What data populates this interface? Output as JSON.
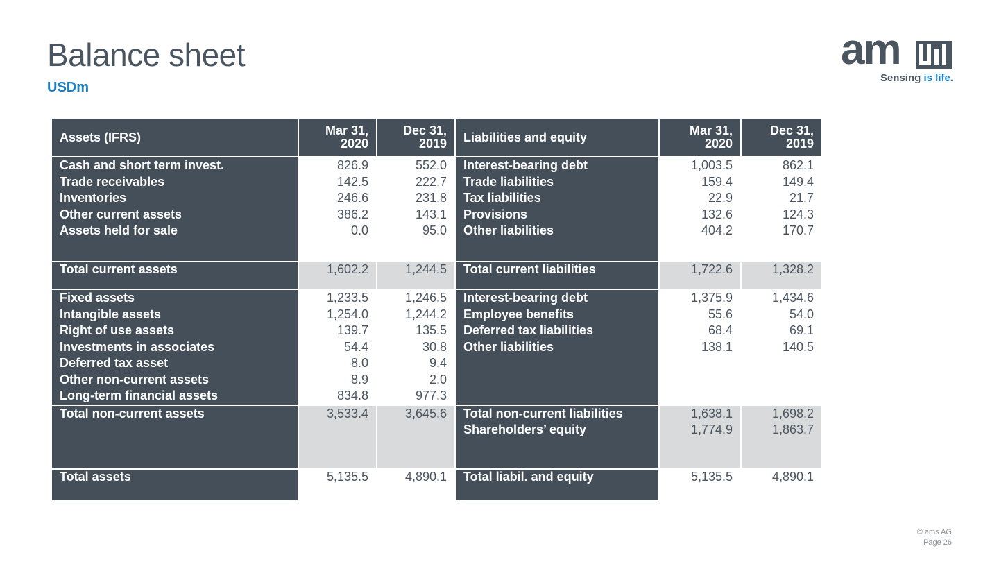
{
  "title": "Balance sheet",
  "subtitle": "USDm",
  "logo": {
    "wordmark": "am",
    "tagline_a": "Sensing ",
    "tagline_b": "is life."
  },
  "footer": {
    "copyright": "© ams AG",
    "page": "Page 26"
  },
  "headers": {
    "assets": "Assets (IFRS)",
    "liabilities": "Liabilities and equity",
    "col1_l1": "Mar 31,",
    "col1_l2": "2020",
    "col2_l1": "Dec 31,",
    "col2_l2": "2019"
  },
  "current_assets": {
    "labels": [
      "Cash and short term invest.",
      "Trade receivables",
      "Inventories",
      "Other current assets",
      "Assets held for sale"
    ],
    "mar2020": [
      "826.9",
      "142.5",
      "246.6",
      "386.2",
      "0.0"
    ],
    "dec2019": [
      "552.0",
      "222.7",
      "231.8",
      "143.1",
      "95.0"
    ]
  },
  "current_liabilities": {
    "labels": [
      "Interest-bearing debt",
      "Trade liabilities",
      "Tax liabilities",
      "Provisions",
      "Other liabilities"
    ],
    "mar2020": [
      "1,003.5",
      "159.4",
      "22.9",
      "132.6",
      "404.2"
    ],
    "dec2019": [
      "862.1",
      "149.4",
      "21.7",
      "124.3",
      "170.7"
    ]
  },
  "total_current": {
    "assets_label": "Total current assets",
    "assets_mar2020": "1,602.2",
    "assets_dec2019": "1,244.5",
    "liab_label": "Total current liabilities",
    "liab_mar2020": "1,722.6",
    "liab_dec2019": "1,328.2"
  },
  "noncurrent_assets": {
    "labels": [
      "Fixed assets",
      "Intangible assets",
      "Right of use assets",
      "Investments in associates",
      "Deferred tax asset",
      "Other non-current assets",
      "Long-term financial assets"
    ],
    "mar2020": [
      "1,233.5",
      "1,254.0",
      "139.7",
      "54.4",
      "8.0",
      "8.9",
      "834.8"
    ],
    "dec2019": [
      "1,246.5",
      "1,244.2",
      "135.5",
      "30.8",
      "9.4",
      "2.0",
      "977.3"
    ]
  },
  "noncurrent_liabilities": {
    "labels": [
      "Interest-bearing debt",
      "Employee benefits",
      "Deferred tax liabilities",
      "Other liabilities"
    ],
    "mar2020": [
      "1,375.9",
      "55.6",
      "68.4",
      "138.1"
    ],
    "dec2019": [
      "1,434.6",
      "54.0",
      "69.1",
      "140.5"
    ]
  },
  "total_noncurrent": {
    "assets_label": "Total non-current assets",
    "assets_mar2020": "3,533.4",
    "assets_dec2019": "3,645.6",
    "liab_labels": [
      "Total non-current liabilities",
      "Shareholders’ equity"
    ],
    "liab_mar2020": [
      "1,638.1",
      "1,774.9"
    ],
    "liab_dec2019": [
      "1,698.2",
      "1,863.7"
    ]
  },
  "totals": {
    "assets_label": "Total assets",
    "assets_mar2020": "5,135.5",
    "assets_dec2019": "4,890.1",
    "liab_label": "Total liabil. and equity",
    "liab_mar2020": "5,135.5",
    "liab_dec2019": "4,890.1"
  },
  "colors": {
    "dark": "#444f5a",
    "gray": "#d9dadb",
    "accent": "#1a7fc4",
    "text": "#4a5560"
  }
}
